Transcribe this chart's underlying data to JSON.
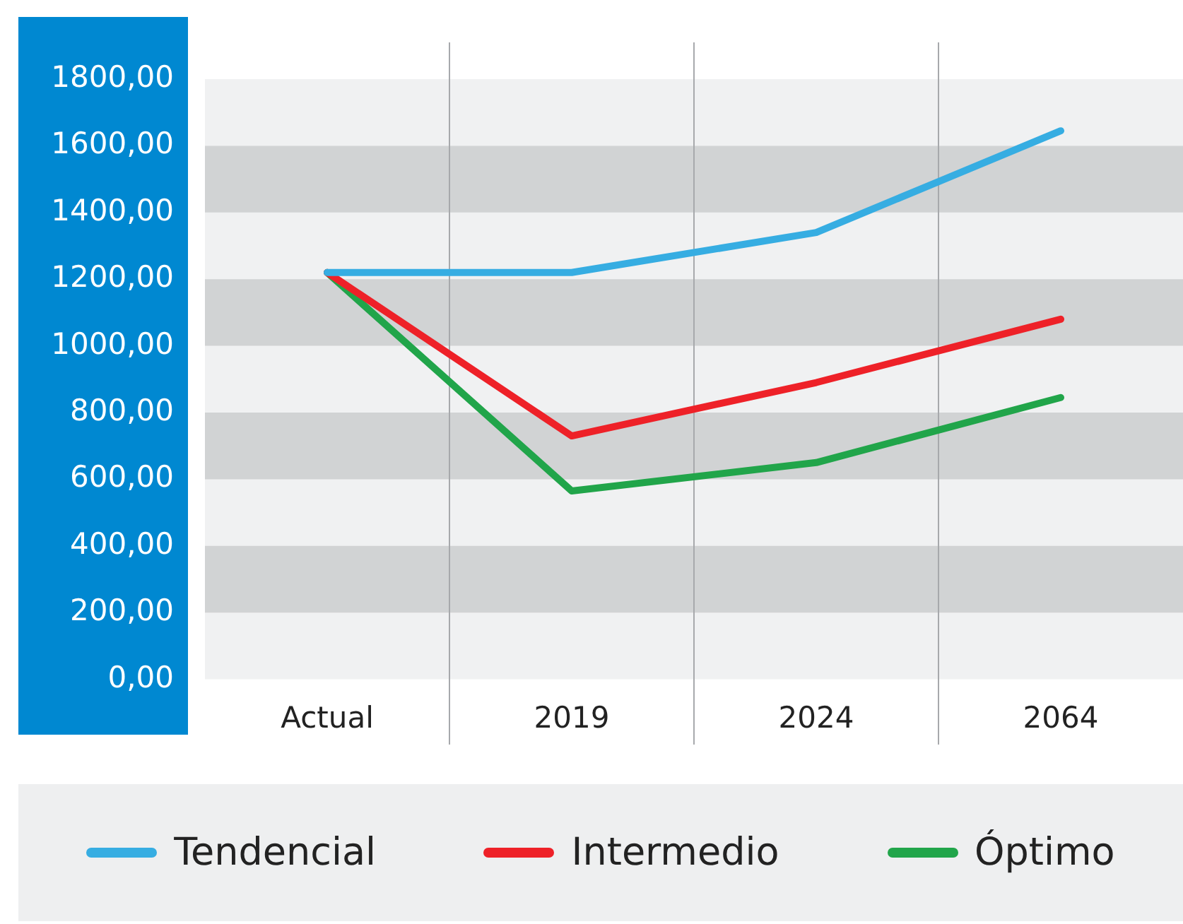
{
  "chart_data": {
    "type": "line",
    "categories": [
      "Actual",
      "2019",
      "2024",
      "2064"
    ],
    "series": [
      {
        "name": "Tendencial",
        "color": "#36ade2",
        "values": [
          1220,
          1220,
          1340,
          1645
        ]
      },
      {
        "name": "Intermedio",
        "color": "#ee2128",
        "values": [
          1220,
          730,
          890,
          1080
        ]
      },
      {
        "name": "Óptimo",
        "color": "#21a54a",
        "values": [
          1220,
          565,
          650,
          845
        ]
      }
    ],
    "ylim": [
      0,
      1800
    ],
    "yticks": [
      {
        "value": 0,
        "label": "0,00"
      },
      {
        "value": 200,
        "label": "200,00"
      },
      {
        "value": 400,
        "label": "400,00"
      },
      {
        "value": 600,
        "label": "600,00"
      },
      {
        "value": 800,
        "label": "800,00"
      },
      {
        "value": 1000,
        "label": "1000,00"
      },
      {
        "value": 1200,
        "label": "1200,00"
      },
      {
        "value": 1400,
        "label": "1400,00"
      },
      {
        "value": 1600,
        "label": "1600,00"
      },
      {
        "value": 1800,
        "label": "1800,00"
      }
    ],
    "grid": "x",
    "legend": "bottom",
    "marker": "none",
    "line_style": "solid"
  }
}
